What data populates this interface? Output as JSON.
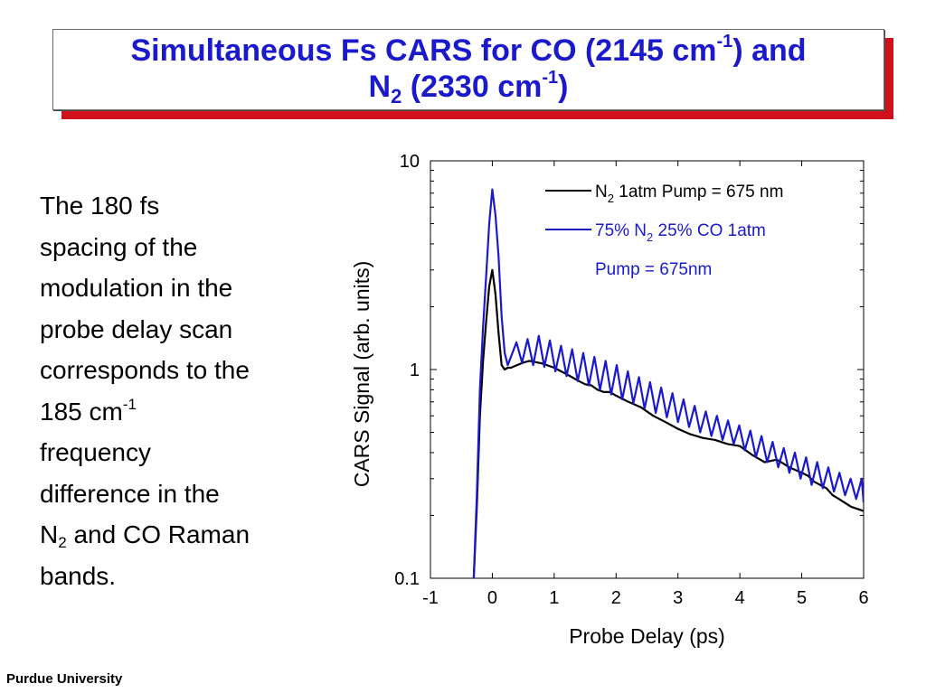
{
  "slide": {
    "title_line1_pre": "Simultaneous Fs CARS for CO (2145 cm",
    "title_line1_sup": "-1",
    "title_line1_post": ") and",
    "title_line2_pre": "N",
    "title_line2_sub": "2",
    "title_line2_mid": " (2330 cm",
    "title_line2_sup": "-1",
    "title_line2_post": ")",
    "footer": "Purdue University",
    "colors": {
      "title_text": "#1a1acc",
      "title_shadow": "#d0101b"
    }
  },
  "body": {
    "line1": "The 180 fs",
    "line2": "spacing of the",
    "line3": "modulation in the",
    "line4": "probe delay scan",
    "line5": "corresponds to the",
    "line6_pre": "185 cm",
    "line6_sup": "-1",
    "line7": "frequency",
    "line8": "difference in the",
    "line9_pre": "N",
    "line9_sub": "2",
    "line9_post": " and CO Raman",
    "line10": "bands."
  },
  "chart_data": {
    "type": "line",
    "xlabel": "Probe Delay (ps)",
    "ylabel": "CARS Signal (arb. units)",
    "xlim": [
      -1,
      6
    ],
    "ylim": [
      0.1,
      10
    ],
    "yscale": "log",
    "xticks": [
      "-1",
      "0",
      "1",
      "2",
      "3",
      "4",
      "5",
      "6"
    ],
    "yticks": [
      "0.1",
      "1",
      "10"
    ],
    "legend_position": "top-right",
    "grid": false,
    "legend": [
      {
        "pre": "N",
        "sub": "2",
        "post": " 1atm Pump = 675 nm",
        "color": "#000000"
      },
      {
        "pre": "75% N",
        "sub": "2",
        "post": " 25% CO 1atm",
        "line2": "Pump = 675nm",
        "color": "#1a1acc"
      }
    ],
    "series": [
      {
        "color": "#000000",
        "x": [
          -0.3,
          -0.25,
          -0.2,
          -0.15,
          -0.1,
          -0.05,
          0.0,
          0.05,
          0.1,
          0.15,
          0.2,
          0.25,
          0.3,
          0.4,
          0.5,
          0.6,
          0.8,
          1.0,
          1.2,
          1.4,
          1.5,
          1.6,
          1.7,
          1.8,
          1.9,
          2.0,
          2.2,
          2.4,
          2.6,
          2.8,
          3.0,
          3.2,
          3.4,
          3.6,
          3.8,
          4.0,
          4.2,
          4.4,
          4.6,
          4.8,
          5.0,
          5.1,
          5.2,
          5.4,
          5.5,
          5.6,
          5.8,
          6.0
        ],
        "y": [
          0.1,
          0.22,
          0.6,
          1.1,
          1.7,
          2.5,
          3.0,
          2.3,
          1.5,
          1.05,
          1.0,
          1.02,
          1.02,
          1.05,
          1.08,
          1.1,
          1.07,
          1.02,
          0.95,
          0.88,
          0.85,
          0.84,
          0.8,
          0.78,
          0.78,
          0.75,
          0.7,
          0.66,
          0.6,
          0.56,
          0.52,
          0.49,
          0.47,
          0.46,
          0.44,
          0.43,
          0.39,
          0.36,
          0.37,
          0.34,
          0.32,
          0.31,
          0.29,
          0.27,
          0.25,
          0.24,
          0.22,
          0.21
        ]
      },
      {
        "color": "#1a1acc",
        "x": [
          -0.3,
          -0.25,
          -0.2,
          -0.15,
          -0.1,
          -0.05,
          0.0,
          0.05,
          0.1,
          0.15,
          0.2,
          0.25,
          0.3,
          0.39,
          0.48,
          0.57,
          0.66,
          0.75,
          0.84,
          0.93,
          1.02,
          1.11,
          1.2,
          1.29,
          1.38,
          1.47,
          1.56,
          1.65,
          1.74,
          1.83,
          1.92,
          2.01,
          2.1,
          2.19,
          2.28,
          2.37,
          2.46,
          2.55,
          2.64,
          2.73,
          2.82,
          2.91,
          3.0,
          3.09,
          3.18,
          3.27,
          3.36,
          3.45,
          3.54,
          3.63,
          3.72,
          3.81,
          3.9,
          3.99,
          4.08,
          4.17,
          4.26,
          4.35,
          4.44,
          4.53,
          4.62,
          4.71,
          4.8,
          4.89,
          4.98,
          5.07,
          5.16,
          5.25,
          5.34,
          5.43,
          5.52,
          5.61,
          5.7,
          5.79,
          5.88,
          5.97,
          6.0
        ],
        "y": [
          0.1,
          0.25,
          0.8,
          1.6,
          2.8,
          5.0,
          7.3,
          5.5,
          3.5,
          1.8,
          1.2,
          1.05,
          1.15,
          1.35,
          1.08,
          1.4,
          1.05,
          1.45,
          1.03,
          1.38,
          0.98,
          1.3,
          0.93,
          1.25,
          0.88,
          1.2,
          0.84,
          1.15,
          0.8,
          1.1,
          0.76,
          1.05,
          0.72,
          0.98,
          0.69,
          0.92,
          0.65,
          0.87,
          0.62,
          0.82,
          0.59,
          0.77,
          0.56,
          0.72,
          0.53,
          0.67,
          0.5,
          0.63,
          0.48,
          0.6,
          0.46,
          0.57,
          0.44,
          0.54,
          0.41,
          0.51,
          0.38,
          0.48,
          0.36,
          0.45,
          0.34,
          0.42,
          0.32,
          0.4,
          0.3,
          0.38,
          0.28,
          0.36,
          0.27,
          0.34,
          0.26,
          0.32,
          0.25,
          0.3,
          0.24,
          0.3,
          0.23
        ]
      }
    ]
  }
}
